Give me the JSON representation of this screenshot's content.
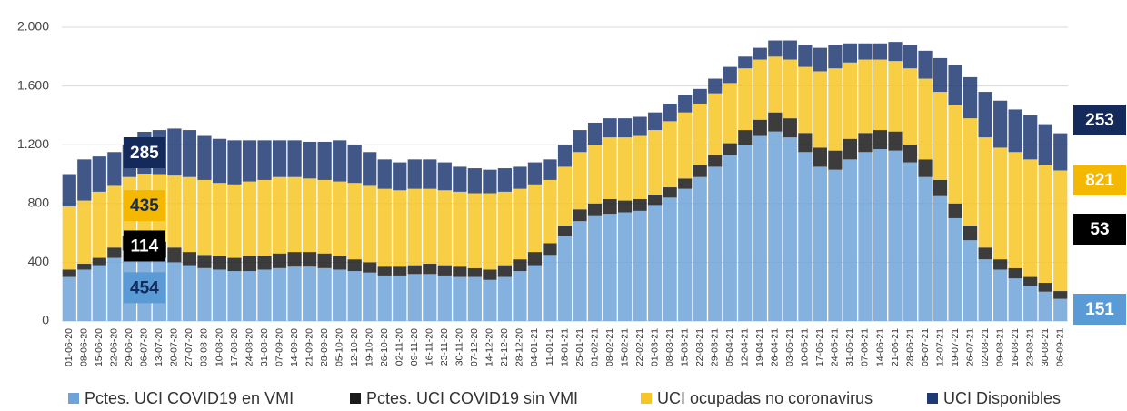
{
  "chart_data": {
    "type": "stacked_bar",
    "categories": [
      "01-06-20",
      "08-06-20",
      "15-06-20",
      "22-06-20",
      "29-06-20",
      "06-07-20",
      "13-07-20",
      "20-07-20",
      "27-07-20",
      "03-08-20",
      "10-08-20",
      "17-08-20",
      "24-08-20",
      "31-08-20",
      "07-09-20",
      "14-09-20",
      "21-09-20",
      "28-09-20",
      "05-10-20",
      "12-10-20",
      "19-10-20",
      "26-10-20",
      "02-11-20",
      "09-11-20",
      "16-11-20",
      "23-11-20",
      "30-11-20",
      "07-12-20",
      "14-12-20",
      "21-12-20",
      "28-12-20",
      "04-01-21",
      "11-01-21",
      "18-01-21",
      "25-01-21",
      "01-02-21",
      "08-02-21",
      "15-02-21",
      "22-02-21",
      "01-03-21",
      "08-03-21",
      "15-03-21",
      "22-03-21",
      "29-03-21",
      "05-04-21",
      "12-04-21",
      "19-04-21",
      "26-04-21",
      "03-05-21",
      "10-05-21",
      "17-05-21",
      "24-05-21",
      "31-05-21",
      "07-06-21",
      "14-06-21",
      "21-06-21",
      "28-06-21",
      "05-07-21",
      "12-07-21",
      "19-07-21",
      "26-07-21",
      "02-08-21",
      "09-08-21",
      "16-08-21",
      "23-08-21",
      "30-08-21",
      "06-09-21"
    ],
    "series": [
      {
        "name": "Pctes. UCI COVID19 en VMI",
        "color": "#6fa3d8",
        "values": [
          300,
          350,
          380,
          430,
          480,
          454,
          430,
          400,
          380,
          360,
          350,
          340,
          340,
          350,
          360,
          370,
          370,
          360,
          350,
          340,
          330,
          310,
          310,
          320,
          320,
          310,
          300,
          300,
          280,
          300,
          340,
          380,
          450,
          580,
          680,
          720,
          730,
          740,
          750,
          790,
          840,
          900,
          980,
          1050,
          1130,
          1200,
          1260,
          1290,
          1250,
          1150,
          1050,
          1030,
          1100,
          1150,
          1170,
          1160,
          1080,
          980,
          850,
          700,
          550,
          420,
          350,
          290,
          240,
          200,
          151
        ],
        "value_labels": [
          null,
          null,
          null,
          null,
          null,
          "454",
          null,
          null,
          null,
          null,
          null,
          null,
          null,
          null,
          null,
          null,
          null,
          null,
          null,
          null,
          null,
          null,
          null,
          null,
          null,
          null,
          null,
          null,
          null,
          null,
          null,
          null,
          null,
          null,
          null,
          null,
          null,
          null,
          null,
          null,
          null,
          null,
          null,
          null,
          null,
          null,
          null,
          null,
          null,
          null,
          null,
          null,
          null,
          null,
          null,
          null,
          null,
          null,
          null,
          null,
          null,
          null,
          null,
          null,
          null,
          null,
          "151"
        ]
      },
      {
        "name": "Pctes. UCI COVID19 sin VMI",
        "color": "#1a1a1a",
        "values": [
          50,
          40,
          50,
          70,
          100,
          114,
          110,
          100,
          90,
          90,
          90,
          90,
          100,
          90,
          100,
          100,
          100,
          100,
          90,
          80,
          70,
          60,
          60,
          60,
          70,
          70,
          70,
          60,
          70,
          80,
          80,
          90,
          80,
          70,
          80,
          80,
          100,
          80,
          80,
          70,
          70,
          70,
          80,
          80,
          80,
          100,
          110,
          130,
          130,
          130,
          130,
          130,
          140,
          130,
          130,
          130,
          120,
          120,
          110,
          100,
          100,
          80,
          70,
          70,
          60,
          60,
          53
        ],
        "value_labels": [
          null,
          null,
          null,
          null,
          null,
          "114",
          null,
          null,
          null,
          null,
          null,
          null,
          null,
          null,
          null,
          null,
          null,
          null,
          null,
          null,
          null,
          null,
          null,
          null,
          null,
          null,
          null,
          null,
          null,
          null,
          null,
          null,
          null,
          null,
          null,
          null,
          null,
          null,
          null,
          null,
          null,
          null,
          null,
          null,
          null,
          null,
          null,
          null,
          null,
          null,
          null,
          null,
          null,
          null,
          null,
          null,
          null,
          null,
          null,
          null,
          null,
          null,
          null,
          null,
          null,
          null,
          "53"
        ]
      },
      {
        "name": "UCI ocupadas no coronavirus",
        "color": "#f7c625",
        "values": [
          430,
          430,
          450,
          420,
          400,
          435,
          460,
          490,
          510,
          510,
          500,
          500,
          510,
          520,
          520,
          510,
          500,
          500,
          510,
          520,
          520,
          530,
          520,
          520,
          510,
          510,
          510,
          510,
          520,
          500,
          480,
          460,
          430,
          400,
          390,
          400,
          420,
          430,
          430,
          440,
          450,
          450,
          420,
          420,
          410,
          420,
          410,
          380,
          400,
          450,
          520,
          560,
          520,
          500,
          480,
          480,
          520,
          550,
          600,
          670,
          730,
          750,
          760,
          790,
          800,
          800,
          821
        ],
        "value_labels": [
          null,
          null,
          null,
          null,
          null,
          "435",
          null,
          null,
          null,
          null,
          null,
          null,
          null,
          null,
          null,
          null,
          null,
          null,
          null,
          null,
          null,
          null,
          null,
          null,
          null,
          null,
          null,
          null,
          null,
          null,
          null,
          null,
          null,
          null,
          null,
          null,
          null,
          null,
          null,
          null,
          null,
          null,
          null,
          null,
          null,
          null,
          null,
          null,
          null,
          null,
          null,
          null,
          null,
          null,
          null,
          null,
          null,
          null,
          null,
          null,
          null,
          null,
          null,
          null,
          null,
          null,
          "821"
        ]
      },
      {
        "name": "UCI Disponibles",
        "color": "#1f3a73",
        "values": [
          220,
          280,
          240,
          230,
          220,
          285,
          300,
          320,
          320,
          300,
          300,
          300,
          280,
          270,
          250,
          250,
          250,
          260,
          280,
          260,
          230,
          200,
          190,
          200,
          200,
          190,
          170,
          170,
          160,
          160,
          150,
          150,
          140,
          150,
          150,
          150,
          130,
          130,
          130,
          120,
          120,
          120,
          100,
          100,
          110,
          80,
          80,
          110,
          130,
          150,
          160,
          160,
          130,
          110,
          110,
          130,
          160,
          190,
          230,
          270,
          280,
          310,
          320,
          290,
          300,
          280,
          253
        ],
        "value_labels": [
          null,
          null,
          null,
          null,
          null,
          "285",
          null,
          null,
          null,
          null,
          null,
          null,
          null,
          null,
          null,
          null,
          null,
          null,
          null,
          null,
          null,
          null,
          null,
          null,
          null,
          null,
          null,
          null,
          null,
          null,
          null,
          null,
          null,
          null,
          null,
          null,
          null,
          null,
          null,
          null,
          null,
          null,
          null,
          null,
          null,
          null,
          null,
          null,
          null,
          null,
          null,
          null,
          null,
          null,
          null,
          null,
          null,
          null,
          null,
          null,
          null,
          null,
          null,
          null,
          null,
          null,
          "253"
        ]
      }
    ],
    "ylim": [
      0,
      2000
    ],
    "yticks": [
      0,
      400,
      800,
      {
        "value": 1200,
        "label": "1.200"
      },
      {
        "value": 1600,
        "label": "1.600"
      },
      {
        "value": 2000,
        "label": "2.000"
      }
    ],
    "grid": true,
    "legend": "bottom"
  }
}
